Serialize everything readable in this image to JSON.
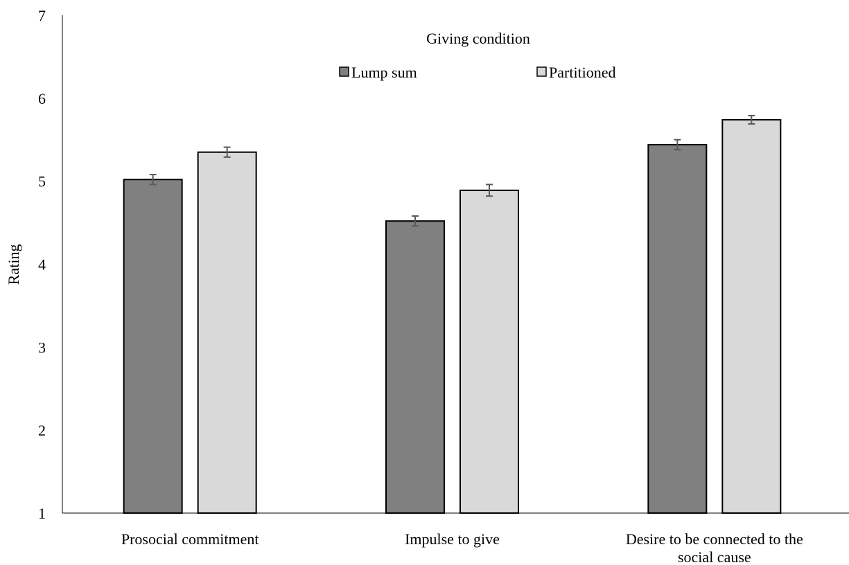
{
  "chart_data": {
    "type": "bar",
    "title": "",
    "xlabel": "",
    "ylabel": "Rating",
    "ylim": [
      1,
      7
    ],
    "yticks": [
      1,
      2,
      3,
      4,
      5,
      6,
      7
    ],
    "grid": false,
    "legend": {
      "title": "Giving condition",
      "placement": "top-center"
    },
    "categories": [
      [
        "Prosocial commitment"
      ],
      [
        "Impulse to give"
      ],
      [
        "Desire to be connected to the",
        "social cause"
      ]
    ],
    "series": [
      {
        "name": "Lump sum",
        "color": "#808080",
        "values": [
          5.02,
          4.52,
          5.44
        ],
        "errors": [
          0.06,
          0.06,
          0.06
        ]
      },
      {
        "name": "Partitioned",
        "color": "#d9d9d9",
        "values": [
          5.35,
          4.89,
          5.74
        ],
        "errors": [
          0.06,
          0.07,
          0.05
        ]
      }
    ]
  }
}
